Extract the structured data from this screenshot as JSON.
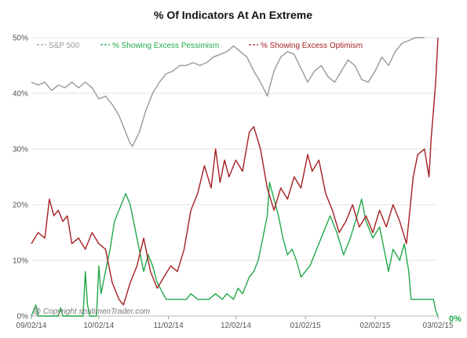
{
  "chart_data": {
    "type": "line",
    "title": "% Of Indicators At An Extreme",
    "xlabel": "",
    "ylabel": "",
    "ylim": [
      0,
      50
    ],
    "xlim": [
      "2014-09-02",
      "2015-03-02"
    ],
    "x_ticks": [
      "09/02/14",
      "10/02/14",
      "11/02/14",
      "12/02/14",
      "01/02/15",
      "02/02/15",
      "03/02/15"
    ],
    "y_ticks": [
      "0%",
      "10%",
      "20%",
      "30%",
      "40%",
      "50%"
    ],
    "grid": "horizontal",
    "legend_position": "top",
    "copyright": "@ Copyright   sentimenTrader.com",
    "end_label": "0%",
    "colors": {
      "sp500": "#999999",
      "pessimism": "#22a84a",
      "optimism": "#a41f22",
      "grid": "#e3e3e3",
      "end_label": "#22a84a"
    },
    "series": [
      {
        "name": "S&P 500",
        "key": "sp500",
        "points": [
          [
            "2014-09-02",
            42
          ],
          [
            "2014-09-05",
            41.5
          ],
          [
            "2014-09-08",
            42
          ],
          [
            "2014-09-11",
            40.5
          ],
          [
            "2014-09-14",
            41.5
          ],
          [
            "2014-09-17",
            41
          ],
          [
            "2014-09-20",
            42
          ],
          [
            "2014-09-23",
            41
          ],
          [
            "2014-09-26",
            42
          ],
          [
            "2014-09-29",
            41
          ],
          [
            "2014-10-02",
            39
          ],
          [
            "2014-10-05",
            39.5
          ],
          [
            "2014-10-08",
            38
          ],
          [
            "2014-10-11",
            36
          ],
          [
            "2014-10-14",
            33
          ],
          [
            "2014-10-16",
            31
          ],
          [
            "2014-10-17",
            30.5
          ],
          [
            "2014-10-20",
            33
          ],
          [
            "2014-10-23",
            37
          ],
          [
            "2014-10-26",
            40
          ],
          [
            "2014-10-29",
            42
          ],
          [
            "2014-11-01",
            43.5
          ],
          [
            "2014-11-04",
            44
          ],
          [
            "2014-11-07",
            45
          ],
          [
            "2014-11-10",
            45
          ],
          [
            "2014-11-13",
            45.5
          ],
          [
            "2014-11-16",
            45
          ],
          [
            "2014-11-19",
            45.5
          ],
          [
            "2014-11-22",
            46.5
          ],
          [
            "2014-11-25",
            47
          ],
          [
            "2014-11-28",
            47.5
          ],
          [
            "2014-12-01",
            48.5
          ],
          [
            "2014-12-04",
            47.5
          ],
          [
            "2014-12-07",
            46.5
          ],
          [
            "2014-12-10",
            44
          ],
          [
            "2014-12-13",
            42
          ],
          [
            "2014-12-16",
            39.5
          ],
          [
            "2014-12-19",
            44
          ],
          [
            "2014-12-22",
            46.5
          ],
          [
            "2014-12-25",
            47.5
          ],
          [
            "2014-12-28",
            47
          ],
          [
            "2014-12-31",
            44.5
          ],
          [
            "2015-01-03",
            42
          ],
          [
            "2015-01-06",
            44
          ],
          [
            "2015-01-09",
            45
          ],
          [
            "2015-01-12",
            43
          ],
          [
            "2015-01-15",
            42
          ],
          [
            "2015-01-18",
            44
          ],
          [
            "2015-01-21",
            46
          ],
          [
            "2015-01-24",
            45
          ],
          [
            "2015-01-27",
            42.5
          ],
          [
            "2015-01-30",
            42
          ],
          [
            "2015-02-02",
            44
          ],
          [
            "2015-02-05",
            46.5
          ],
          [
            "2015-02-08",
            45
          ],
          [
            "2015-02-11",
            47.5
          ],
          [
            "2015-02-14",
            49
          ],
          [
            "2015-02-17",
            49.5
          ],
          [
            "2015-02-20",
            50
          ],
          [
            "2015-02-24",
            50
          ]
        ]
      },
      {
        "name": "% Showing Excess Pessimism",
        "key": "pessimism",
        "points": [
          [
            "2014-09-02",
            0
          ],
          [
            "2014-09-04",
            2
          ],
          [
            "2014-09-05",
            0
          ],
          [
            "2014-09-14",
            0
          ],
          [
            "2014-09-15",
            1.5
          ],
          [
            "2014-09-16",
            0
          ],
          [
            "2014-09-25",
            0
          ],
          [
            "2014-09-26",
            8
          ],
          [
            "2014-09-27",
            2
          ],
          [
            "2014-09-28",
            0
          ],
          [
            "2014-10-01",
            0
          ],
          [
            "2014-10-02",
            9
          ],
          [
            "2014-10-03",
            4
          ],
          [
            "2014-10-05",
            8
          ],
          [
            "2014-10-07",
            12
          ],
          [
            "2014-10-09",
            17
          ],
          [
            "2014-10-11",
            19
          ],
          [
            "2014-10-14",
            22
          ],
          [
            "2014-10-16",
            20
          ],
          [
            "2014-10-18",
            16
          ],
          [
            "2014-10-20",
            12
          ],
          [
            "2014-10-22",
            8
          ],
          [
            "2014-10-24",
            11
          ],
          [
            "2014-10-26",
            9
          ],
          [
            "2014-10-28",
            6
          ],
          [
            "2014-11-01",
            3
          ],
          [
            "2014-11-10",
            3
          ],
          [
            "2014-11-12",
            4
          ],
          [
            "2014-11-15",
            3
          ],
          [
            "2014-11-20",
            3
          ],
          [
            "2014-11-23",
            4
          ],
          [
            "2014-11-26",
            3
          ],
          [
            "2014-11-28",
            4
          ],
          [
            "2014-12-01",
            3
          ],
          [
            "2014-12-03",
            5
          ],
          [
            "2014-12-05",
            4
          ],
          [
            "2014-12-08",
            7
          ],
          [
            "2014-12-10",
            8
          ],
          [
            "2014-12-12",
            10
          ],
          [
            "2014-12-14",
            14
          ],
          [
            "2014-12-16",
            18
          ],
          [
            "2014-12-17",
            24
          ],
          [
            "2014-12-19",
            21
          ],
          [
            "2014-12-21",
            18
          ],
          [
            "2014-12-23",
            14
          ],
          [
            "2014-12-25",
            11
          ],
          [
            "2014-12-27",
            12
          ],
          [
            "2014-12-29",
            10
          ],
          [
            "2014-12-31",
            7
          ],
          [
            "2015-01-04",
            9
          ],
          [
            "2015-01-07",
            12
          ],
          [
            "2015-01-10",
            15
          ],
          [
            "2015-01-13",
            18
          ],
          [
            "2015-01-16",
            15
          ],
          [
            "2015-01-19",
            11
          ],
          [
            "2015-01-22",
            14
          ],
          [
            "2015-01-25",
            18
          ],
          [
            "2015-01-27",
            21
          ],
          [
            "2015-01-29",
            17
          ],
          [
            "2015-02-01",
            14
          ],
          [
            "2015-02-04",
            16
          ],
          [
            "2015-02-06",
            12
          ],
          [
            "2015-02-08",
            8
          ],
          [
            "2015-02-10",
            12
          ],
          [
            "2015-02-13",
            10
          ],
          [
            "2015-02-15",
            13
          ],
          [
            "2015-02-17",
            8
          ],
          [
            "2015-02-18",
            3
          ],
          [
            "2015-02-28",
            3
          ],
          [
            "2015-03-01",
            1
          ],
          [
            "2015-03-02",
            0
          ]
        ]
      },
      {
        "name": "% Showing Excess Optimism",
        "key": "optimism",
        "points": [
          [
            "2014-09-02",
            13
          ],
          [
            "2014-09-05",
            15
          ],
          [
            "2014-09-08",
            14
          ],
          [
            "2014-09-10",
            21
          ],
          [
            "2014-09-12",
            18
          ],
          [
            "2014-09-14",
            19
          ],
          [
            "2014-09-16",
            17
          ],
          [
            "2014-09-18",
            18
          ],
          [
            "2014-09-20",
            13
          ],
          [
            "2014-09-23",
            14
          ],
          [
            "2014-09-26",
            12
          ],
          [
            "2014-09-29",
            15
          ],
          [
            "2014-10-02",
            13
          ],
          [
            "2014-10-05",
            12
          ],
          [
            "2014-10-08",
            6
          ],
          [
            "2014-10-11",
            3
          ],
          [
            "2014-10-13",
            2
          ],
          [
            "2014-10-16",
            6
          ],
          [
            "2014-10-19",
            9
          ],
          [
            "2014-10-22",
            14
          ],
          [
            "2014-10-25",
            8
          ],
          [
            "2014-10-28",
            5
          ],
          [
            "2014-10-31",
            7
          ],
          [
            "2014-11-03",
            9
          ],
          [
            "2014-11-06",
            8
          ],
          [
            "2014-11-09",
            12
          ],
          [
            "2014-11-12",
            19
          ],
          [
            "2014-11-15",
            22
          ],
          [
            "2014-11-18",
            27
          ],
          [
            "2014-11-21",
            23
          ],
          [
            "2014-11-23",
            30
          ],
          [
            "2014-11-25",
            24
          ],
          [
            "2014-11-27",
            28
          ],
          [
            "2014-11-29",
            25
          ],
          [
            "2014-12-02",
            28
          ],
          [
            "2014-12-05",
            26
          ],
          [
            "2014-12-08",
            33
          ],
          [
            "2014-12-10",
            34
          ],
          [
            "2014-12-13",
            30
          ],
          [
            "2014-12-16",
            23
          ],
          [
            "2014-12-19",
            19
          ],
          [
            "2014-12-22",
            23
          ],
          [
            "2014-12-25",
            21
          ],
          [
            "2014-12-28",
            25
          ],
          [
            "2014-12-31",
            23
          ],
          [
            "2015-01-03",
            29
          ],
          [
            "2015-01-05",
            26
          ],
          [
            "2015-01-08",
            28
          ],
          [
            "2015-01-11",
            22
          ],
          [
            "2015-01-14",
            19
          ],
          [
            "2015-01-17",
            15
          ],
          [
            "2015-01-20",
            17
          ],
          [
            "2015-01-23",
            20
          ],
          [
            "2015-01-26",
            16
          ],
          [
            "2015-01-29",
            18
          ],
          [
            "2015-02-01",
            15
          ],
          [
            "2015-02-04",
            19
          ],
          [
            "2015-02-07",
            16
          ],
          [
            "2015-02-10",
            20
          ],
          [
            "2015-02-13",
            17
          ],
          [
            "2015-02-16",
            13
          ],
          [
            "2015-02-19",
            25
          ],
          [
            "2015-02-21",
            29
          ],
          [
            "2015-02-24",
            30
          ],
          [
            "2015-02-26",
            25
          ],
          [
            "2015-02-27",
            32
          ],
          [
            "2015-02-28",
            37
          ],
          [
            "2015-03-01",
            42
          ],
          [
            "2015-03-02",
            50
          ]
        ]
      }
    ]
  }
}
